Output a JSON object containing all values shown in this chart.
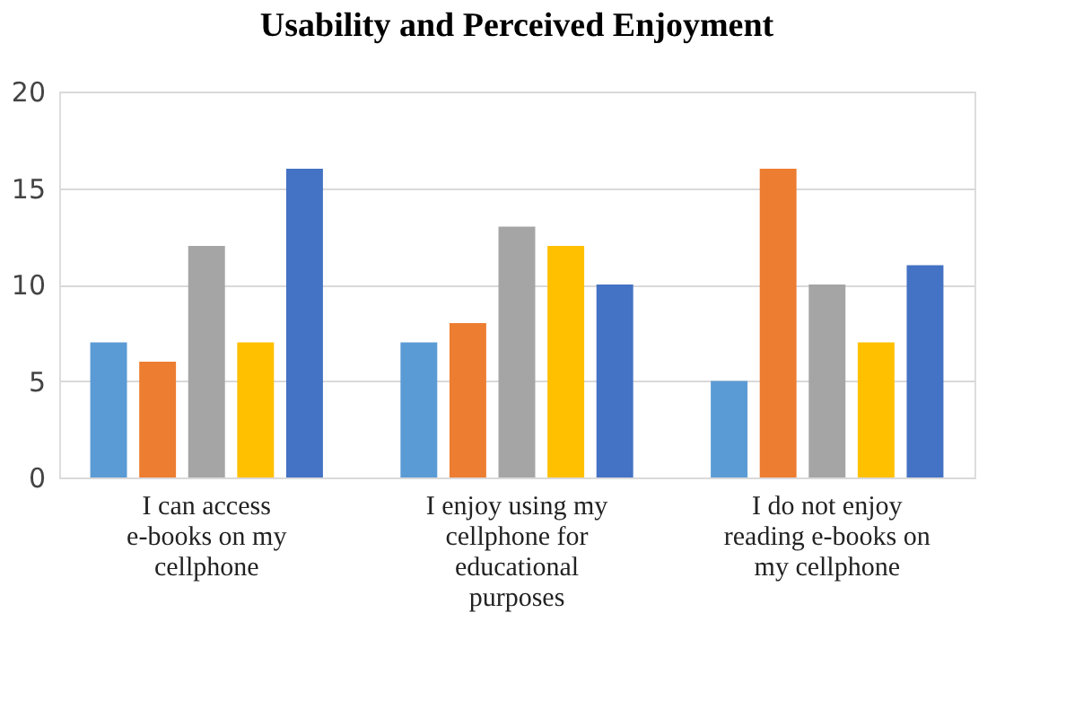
{
  "chart_data": {
    "type": "bar",
    "title": "Usability and Perceived Enjoyment",
    "categories": [
      "I can access e-books on my cellphone",
      "I enjoy using my cellphone for educational purposes",
      "I do not enjoy reading e-books on my cellphone"
    ],
    "series": [
      {
        "color": "#5b9bd5",
        "values": [
          7,
          7,
          5
        ]
      },
      {
        "color": "#ed7d31",
        "values": [
          6,
          8,
          16
        ]
      },
      {
        "color": "#a5a5a5",
        "values": [
          12,
          13,
          10
        ]
      },
      {
        "color": "#ffc000",
        "values": [
          7,
          12,
          7
        ]
      },
      {
        "color": "#4472c4",
        "values": [
          16,
          10,
          11
        ]
      }
    ],
    "ylim": [
      0,
      20
    ],
    "yticks": [
      0,
      5,
      10,
      15,
      20
    ],
    "grid": "y",
    "legend": false
  }
}
